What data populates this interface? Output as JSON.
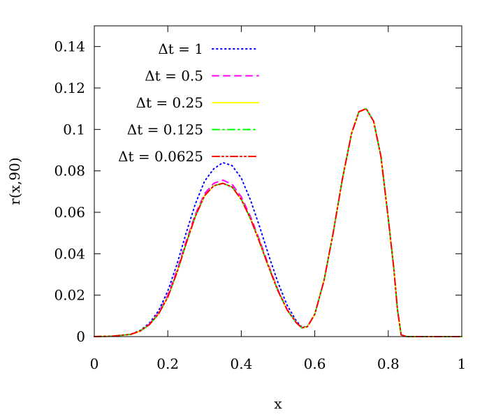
{
  "chart_data": {
    "type": "line",
    "xlabel": "x",
    "ylabel": "r(x,90)",
    "xlim": [
      0,
      1
    ],
    "ylim": [
      0,
      0.15
    ],
    "x_ticks": [
      "0",
      "0.2",
      "0.4",
      "0.6",
      "0.8",
      "1"
    ],
    "y_ticks": [
      "0",
      "0.02",
      "0.04",
      "0.06",
      "0.08",
      "0.1",
      "0.12",
      "0.14"
    ],
    "grid": false,
    "legend_position": "top-left",
    "x": [
      0.0,
      0.05,
      0.1,
      0.125,
      0.15,
      0.175,
      0.2,
      0.225,
      0.25,
      0.275,
      0.3,
      0.325,
      0.35,
      0.375,
      0.4,
      0.425,
      0.45,
      0.475,
      0.5,
      0.525,
      0.55,
      0.565,
      0.58,
      0.6,
      0.625,
      0.65,
      0.675,
      0.7,
      0.72,
      0.74,
      0.76,
      0.78,
      0.8,
      0.815,
      0.825,
      0.835,
      0.85,
      0.9,
      0.95,
      1.0
    ],
    "series": [
      {
        "name": "Δt = 1",
        "color": "#0000ff",
        "dash": "dotted",
        "values": [
          0.0,
          0.0002,
          0.0012,
          0.003,
          0.0065,
          0.0125,
          0.022,
          0.035,
          0.05,
          0.064,
          0.075,
          0.081,
          0.084,
          0.0825,
          0.0765,
          0.066,
          0.053,
          0.039,
          0.026,
          0.015,
          0.0075,
          0.0045,
          0.005,
          0.0108,
          0.027,
          0.05,
          0.076,
          0.098,
          0.1085,
          0.11,
          0.104,
          0.087,
          0.057,
          0.033,
          0.013,
          0.0008,
          0.0,
          0.0,
          0.0,
          0.0
        ]
      },
      {
        "name": "Δt = 0.5",
        "color": "#ff00ff",
        "dash": "dashed",
        "values": [
          0.0,
          0.0002,
          0.0011,
          0.0028,
          0.006,
          0.0115,
          0.02,
          0.032,
          0.046,
          0.059,
          0.069,
          0.074,
          0.0755,
          0.0735,
          0.0675,
          0.058,
          0.0465,
          0.034,
          0.0225,
          0.013,
          0.0068,
          0.0043,
          0.0048,
          0.0108,
          0.027,
          0.05,
          0.076,
          0.098,
          0.1085,
          0.11,
          0.104,
          0.087,
          0.057,
          0.033,
          0.013,
          0.0008,
          0.0,
          0.0,
          0.0,
          0.0
        ]
      },
      {
        "name": "Δt = 0.25",
        "color": "#ffff00",
        "dash": "solid",
        "values": [
          0.0,
          0.0002,
          0.0011,
          0.0027,
          0.0058,
          0.011,
          0.019,
          0.031,
          0.045,
          0.058,
          0.068,
          0.0728,
          0.074,
          0.0722,
          0.0662,
          0.057,
          0.0455,
          0.0333,
          0.022,
          0.0128,
          0.0066,
          0.0042,
          0.0048,
          0.0108,
          0.027,
          0.05,
          0.076,
          0.098,
          0.1085,
          0.11,
          0.104,
          0.087,
          0.057,
          0.033,
          0.013,
          0.0008,
          0.0,
          0.0,
          0.0,
          0.0
        ]
      },
      {
        "name": "Δt = 0.125",
        "color": "#00ff00",
        "dash": "dash-dot",
        "values": [
          0.0,
          0.0002,
          0.0011,
          0.0027,
          0.0058,
          0.011,
          0.019,
          0.031,
          0.045,
          0.058,
          0.068,
          0.0728,
          0.074,
          0.0722,
          0.0662,
          0.057,
          0.0455,
          0.0333,
          0.022,
          0.0128,
          0.0066,
          0.0042,
          0.0048,
          0.0108,
          0.027,
          0.05,
          0.076,
          0.098,
          0.1085,
          0.11,
          0.104,
          0.087,
          0.057,
          0.033,
          0.013,
          0.0008,
          0.0,
          0.0,
          0.0,
          0.0
        ]
      },
      {
        "name": "Δt = 0.0625",
        "color": "#ff0000",
        "dash": "dash-dot-dot",
        "values": [
          0.0,
          0.0002,
          0.0011,
          0.0027,
          0.0058,
          0.011,
          0.019,
          0.031,
          0.045,
          0.058,
          0.068,
          0.0728,
          0.074,
          0.0722,
          0.0662,
          0.057,
          0.0455,
          0.0333,
          0.022,
          0.0128,
          0.0066,
          0.0042,
          0.0048,
          0.0108,
          0.027,
          0.05,
          0.076,
          0.098,
          0.1085,
          0.11,
          0.104,
          0.087,
          0.057,
          0.033,
          0.013,
          0.0008,
          0.0,
          0.0,
          0.0,
          0.0
        ]
      }
    ]
  }
}
